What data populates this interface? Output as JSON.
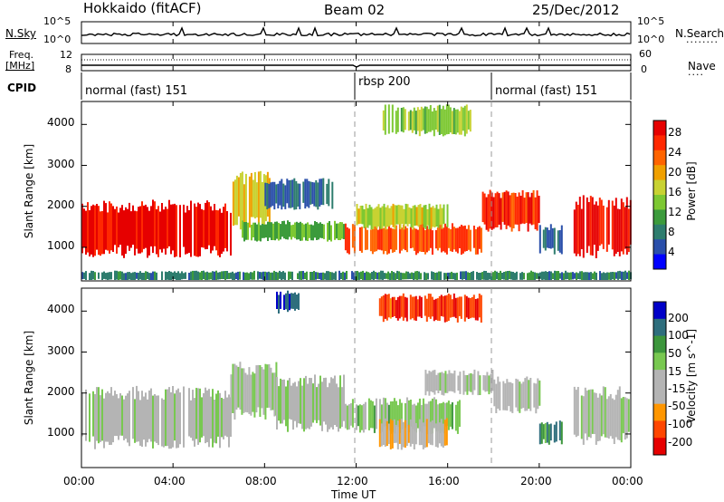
{
  "header": {
    "station": "Hokkaido (fitACF)",
    "beam": "Beam 02",
    "date": "25/Dec/2012"
  },
  "nsky_panel": {
    "label": "N.Sky",
    "right_label": "N.Search",
    "ticks_left": [
      "10^5",
      "10^0"
    ],
    "ticks_right": [
      "10^5",
      "10^0"
    ]
  },
  "freq_panel": {
    "label_top": "Freq.",
    "label_bottom": "[MHz]",
    "ticks_left": [
      "12",
      "8"
    ],
    "right_label": "Nave",
    "ticks_right": [
      "60",
      "0"
    ]
  },
  "cpid_panel": {
    "label": "CPID",
    "segments": [
      {
        "label": "normal (fast) 151",
        "start_hour": 0,
        "end_hour": 12
      },
      {
        "label": "rbsp 200",
        "start_hour": 12,
        "end_hour": 18
      },
      {
        "label": "normal (fast) 151",
        "start_hour": 18,
        "end_hour": 24
      }
    ]
  },
  "time_axis": {
    "label": "Time UT",
    "ticks": [
      "00:00",
      "04:00",
      "08:00",
      "12:00",
      "16:00",
      "20:00",
      "00:00"
    ],
    "tick_hours": [
      0,
      4,
      8,
      12,
      16,
      20,
      24
    ]
  },
  "chart_data": [
    {
      "type": "heatmap",
      "title": "",
      "xlabel": "Time UT",
      "ylabel": "Slant Range [km]",
      "xlim_hours": [
        0,
        24
      ],
      "ylim_km": [
        180,
        4560
      ],
      "yticks": [
        1000,
        2000,
        3000,
        4000
      ],
      "colorbar": {
        "label": "Power [dB]",
        "ticks": [
          "28",
          "24",
          "20",
          "16",
          "12",
          "8",
          "4"
        ],
        "tick_values": [
          28,
          24,
          20,
          16,
          12,
          8,
          4
        ],
        "range": [
          0,
          30
        ],
        "colors": [
          "#0000ff",
          "#2a4faa",
          "#2e7d6e",
          "#3c9b3c",
          "#7dc832",
          "#c8d232",
          "#f0a000",
          "#ff6400",
          "#ff2800",
          "#e60000"
        ]
      },
      "regions": [
        {
          "t": [
            0.0,
            6.5
          ],
          "r": [
            900,
            2000
          ],
          "value": 28
        },
        {
          "t": [
            6.6,
            8.2
          ],
          "r": [
            1600,
            2700
          ],
          "value": 18
        },
        {
          "t": [
            7.0,
            11.5
          ],
          "r": [
            1200,
            1600
          ],
          "value": 12
        },
        {
          "t": [
            8.0,
            11.0
          ],
          "r": [
            2000,
            2600
          ],
          "value": 6
        },
        {
          "t": [
            11.5,
            17.5
          ],
          "r": [
            900,
            1500
          ],
          "value": 24
        },
        {
          "t": [
            12.0,
            16.0
          ],
          "r": [
            1500,
            2000
          ],
          "value": 16
        },
        {
          "t": [
            13.0,
            17.0
          ],
          "r": [
            3800,
            4400
          ],
          "value": 14
        },
        {
          "t": [
            17.5,
            20.0
          ],
          "r": [
            1500,
            2300
          ],
          "value": 26
        },
        {
          "t": [
            20.0,
            21.0
          ],
          "r": [
            900,
            1500
          ],
          "value": 6
        },
        {
          "t": [
            21.5,
            24.0
          ],
          "r": [
            900,
            2100
          ],
          "value": 28
        },
        {
          "t": [
            0.0,
            24.0
          ],
          "r": [
            200,
            400
          ],
          "value": 8
        }
      ]
    },
    {
      "type": "heatmap",
      "title": "",
      "xlabel": "Time UT",
      "ylabel": "Slant Range [km]",
      "xlim_hours": [
        0,
        24
      ],
      "ylim_km": [
        180,
        4560
      ],
      "yticks": [
        1000,
        2000,
        3000,
        4000
      ],
      "colorbar": {
        "label": "Velocity [m s^-1]",
        "ticks": [
          "200",
          "100",
          "50",
          "15",
          "-15",
          "-50",
          "-100",
          "-200"
        ],
        "tick_values": [
          200,
          100,
          50,
          15,
          -15,
          -50,
          -100,
          -200
        ],
        "range": [
          -250,
          250
        ],
        "colors": [
          "#e60000",
          "#ff4600",
          "#ff9600",
          "#b4b4b4",
          "#b4b4b4",
          "#78c850",
          "#3c963c",
          "#2e6e7d",
          "#0000c8"
        ]
      },
      "regions": [
        {
          "t": [
            0.0,
            6.5
          ],
          "r": [
            800,
            2000
          ],
          "value": 0
        },
        {
          "t": [
            6.5,
            8.5
          ],
          "r": [
            1500,
            2600
          ],
          "value": 0
        },
        {
          "t": [
            8.5,
            11.5
          ],
          "r": [
            1200,
            2300
          ],
          "value": 0
        },
        {
          "t": [
            11.5,
            16.5
          ],
          "r": [
            1100,
            1800
          ],
          "value": 45
        },
        {
          "t": [
            13.0,
            16.0
          ],
          "r": [
            700,
            1300
          ],
          "value": -60
        },
        {
          "t": [
            15.0,
            18.0
          ],
          "r": [
            2000,
            2500
          ],
          "value": 0
        },
        {
          "t": [
            18.0,
            20.0
          ],
          "r": [
            1600,
            2300
          ],
          "value": 0
        },
        {
          "t": [
            20.0,
            21.0
          ],
          "r": [
            800,
            1300
          ],
          "value": 120
        },
        {
          "t": [
            21.5,
            24.0
          ],
          "r": [
            900,
            2000
          ],
          "value": 0
        },
        {
          "t": [
            13.0,
            17.5
          ],
          "r": [
            3800,
            4350
          ],
          "value": -180
        },
        {
          "t": [
            8.5,
            9.5
          ],
          "r": [
            4000,
            4450
          ],
          "value": 200
        }
      ]
    }
  ]
}
